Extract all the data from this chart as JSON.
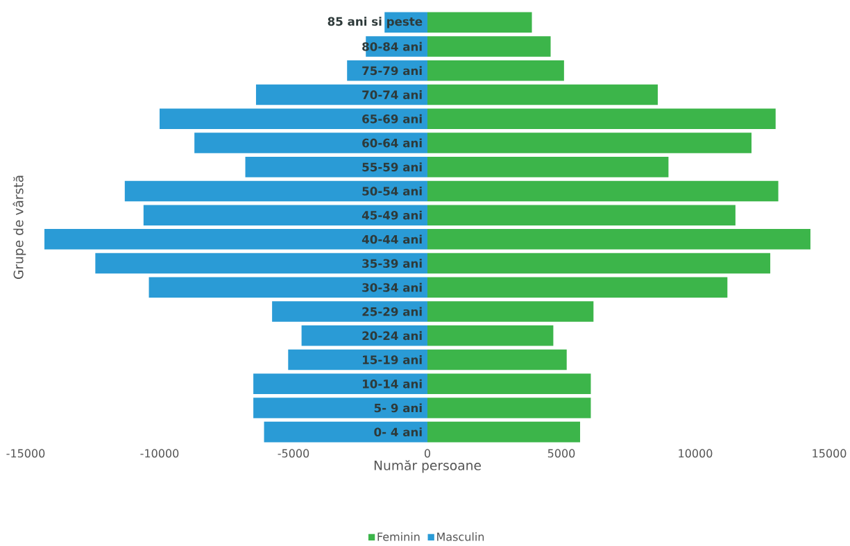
{
  "chart_data": {
    "type": "bar",
    "orientation": "horizontal",
    "xlabel": "Număr persoane",
    "ylabel": "Grupe de vârstă",
    "categories": [
      "85 ani si peste",
      "80-84 ani",
      "75-79 ani",
      "70-74 ani",
      "65-69 ani",
      "60-64 ani",
      "55-59 ani",
      "50-54 ani",
      "45-49 ani",
      "40-44 ani",
      "35-39 ani",
      "30-34 ani",
      "25-29 ani",
      "20-24 ani",
      "15-19 ani",
      "10-14 ani",
      "5- 9 ani",
      "0- 4 ani"
    ],
    "series": [
      {
        "name": "Feminin",
        "color": "#3cb54a",
        "values": [
          3900,
          4600,
          5100,
          8600,
          13000,
          12100,
          9000,
          13100,
          11500,
          14300,
          12800,
          11200,
          6200,
          4700,
          5200,
          6100,
          6100,
          5700
        ]
      },
      {
        "name": "Masculin",
        "color": "#2a9bd6",
        "values": [
          -1600,
          -2300,
          -3000,
          -6400,
          -10000,
          -8700,
          -6800,
          -11300,
          -10600,
          -14300,
          -12400,
          -10400,
          -5800,
          -4700,
          -5200,
          -6500,
          -6500,
          -6100
        ]
      }
    ],
    "xlim": [
      -15000,
      15000
    ],
    "xticks": [
      -15000,
      -10000,
      -5000,
      0,
      5000,
      10000,
      15000
    ],
    "stacked": true,
    "grid": false,
    "legend": "bottom"
  }
}
